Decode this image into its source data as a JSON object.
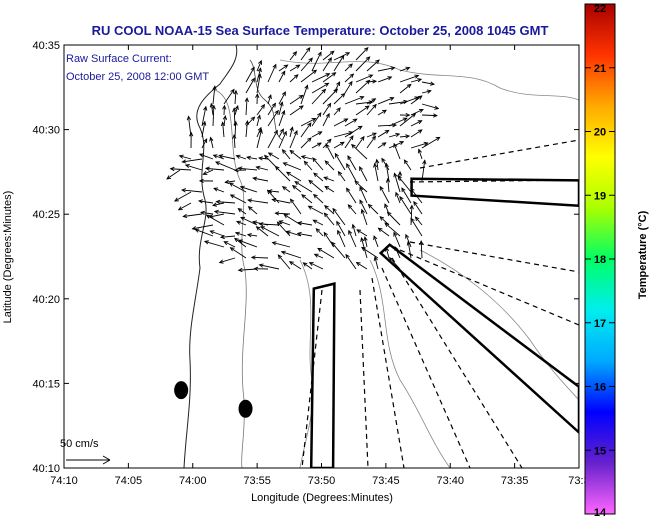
{
  "chart_data": {
    "type": "vector-field-map",
    "title": "RU COOL  NOAA-15  Sea Surface Temperature:  October 25, 2008 1045 GMT",
    "annotation_lines": [
      "Raw Surface Current:",
      "October 25, 2008 12:00 GMT"
    ],
    "xlabel": "Longitude (Degrees:Minutes)",
    "ylabel": "Latitude (Degrees:Minutes)",
    "xlim_minutes_west": [
      10,
      30
    ],
    "ylim_minutes_north": [
      10,
      35
    ],
    "x_ticks": [
      {
        "v": 10,
        "label": "74:10"
      },
      {
        "v": 5,
        "label": "74:05"
      },
      {
        "v": 0,
        "label": "74:00"
      },
      {
        "v": -5,
        "label": "73:55"
      },
      {
        "v": -10,
        "label": "73:50"
      },
      {
        "v": -15,
        "label": "73:45"
      },
      {
        "v": -20,
        "label": "73:40"
      },
      {
        "v": -25,
        "label": "73:35"
      },
      {
        "v": -30,
        "label": "73:3"
      }
    ],
    "y_ticks": [
      {
        "v": 35,
        "label": "40:35"
      },
      {
        "v": 30,
        "label": "40:30"
      },
      {
        "v": 25,
        "label": "40:25"
      },
      {
        "v": 20,
        "label": "40:20"
      },
      {
        "v": 15,
        "label": "40:15"
      },
      {
        "v": 10,
        "label": "40:10"
      }
    ],
    "scale_arrow_label": "50 cm/s",
    "colorbar": {
      "label": "Temperature (°C)",
      "min": 14,
      "max": 22,
      "ticks": [
        "22",
        "21",
        "20",
        "19",
        "18",
        "17",
        "16",
        "15",
        "14"
      ],
      "colors": [
        "#ff66ff",
        "#6622cc",
        "#0000ff",
        "#00aaff",
        "#00eeee",
        "#00ff66",
        "#aaff00",
        "#ffff00",
        "#ffaa00",
        "#ff3300",
        "#aa0000"
      ]
    },
    "markers": [
      {
        "name": "marker-west",
        "x": 0.9,
        "y": 14.6
      },
      {
        "name": "marker-east",
        "x": -4.1,
        "y": 13.5
      }
    ],
    "rectangles": [
      {
        "name": "rect-north",
        "corners": [
          [
            -17,
            27.1
          ],
          [
            -30,
            27.0
          ],
          [
            -30,
            25.5
          ],
          [
            -17,
            26.1
          ]
        ]
      },
      {
        "name": "rect-diag",
        "corners": [
          [
            -14.6,
            22.7
          ],
          [
            -15.3,
            23.2
          ],
          [
            -30,
            14.8
          ],
          [
            -30,
            12.1
          ]
        ]
      },
      {
        "name": "rect-south",
        "corners": [
          [
            -9.4,
            20.6
          ],
          [
            -11.0,
            20.9
          ],
          [
            -10.9,
            10
          ],
          [
            -9.2,
            10
          ]
        ]
      }
    ]
  }
}
